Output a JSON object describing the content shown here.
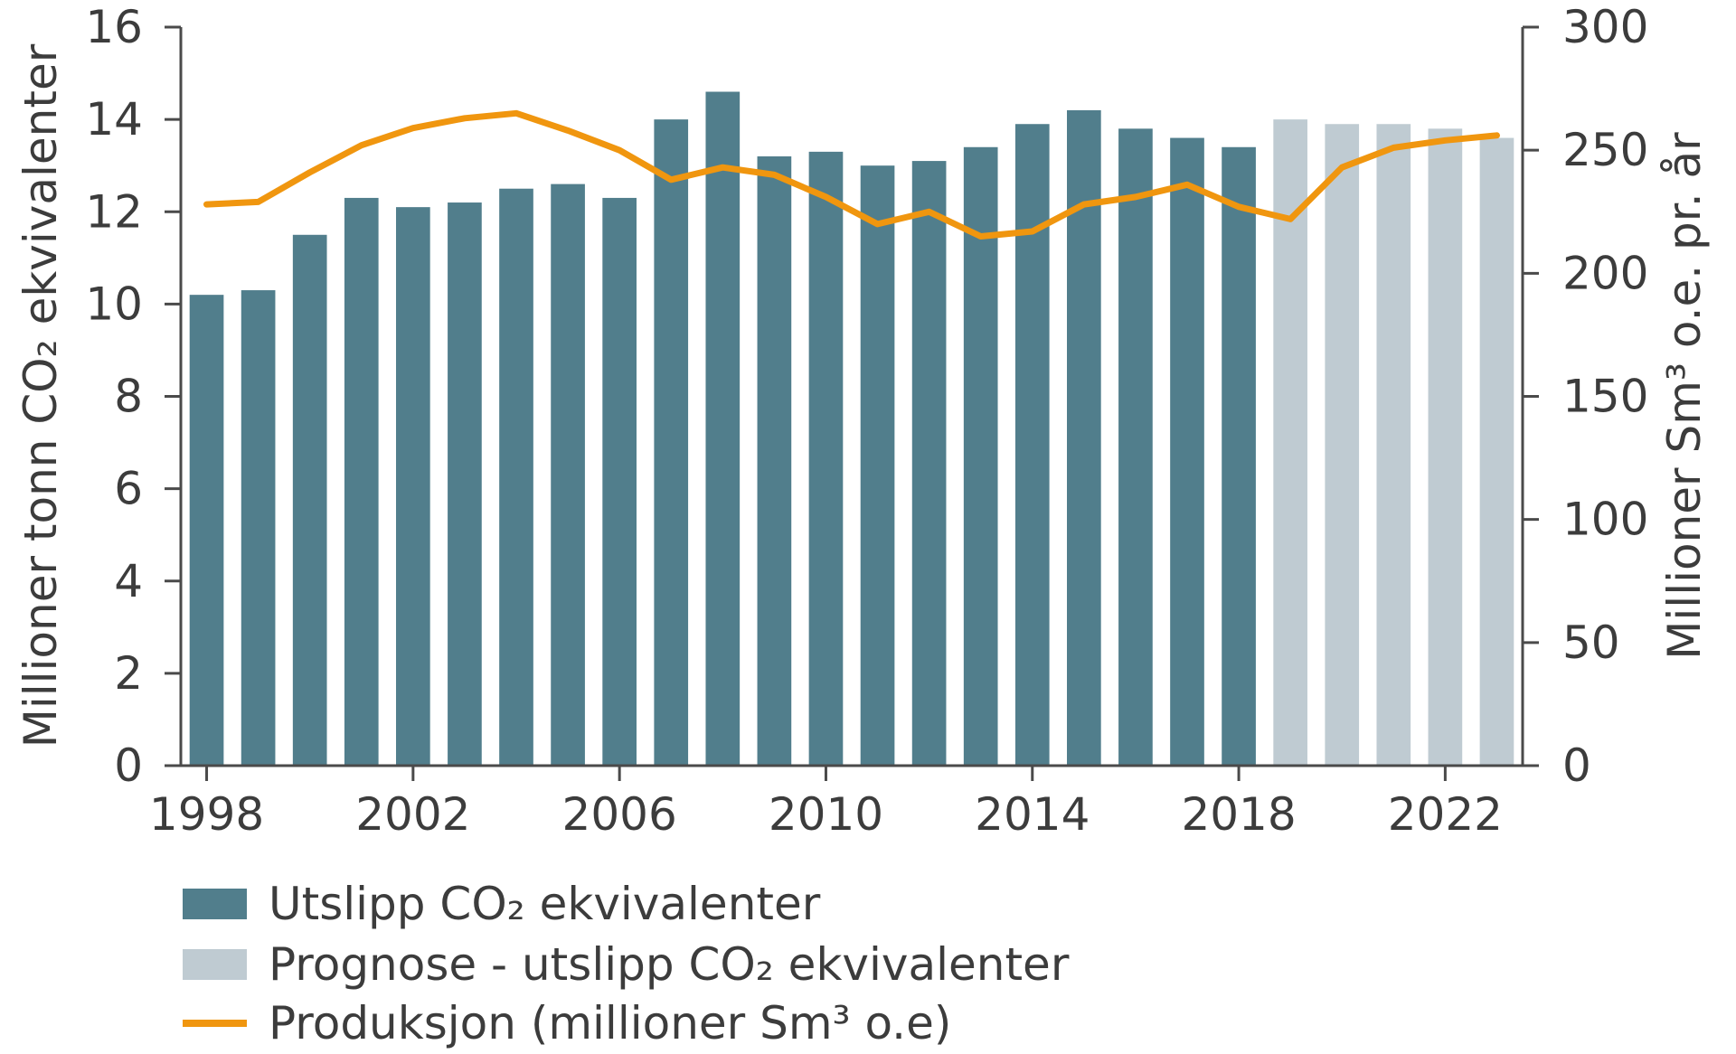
{
  "chart_data": {
    "type": "bar",
    "years": [
      1998,
      1999,
      2000,
      2001,
      2002,
      2003,
      2004,
      2005,
      2006,
      2007,
      2008,
      2009,
      2010,
      2011,
      2012,
      2013,
      2014,
      2015,
      2016,
      2017,
      2018,
      2019,
      2020,
      2021,
      2022,
      2023
    ],
    "x_ticks": [
      "1998",
      "2002",
      "2006",
      "2010",
      "2014",
      "2018",
      "2022"
    ],
    "series": [
      {
        "name": "Utslipp CO₂ ekvivalenter",
        "axis": "left",
        "kind": "bar",
        "color": "#517e8c",
        "values": [
          10.2,
          10.3,
          11.5,
          12.3,
          12.1,
          12.2,
          12.5,
          12.6,
          12.3,
          14.0,
          14.6,
          13.2,
          13.3,
          13.0,
          13.1,
          13.4,
          13.9,
          14.2,
          13.8,
          13.6,
          13.4,
          null,
          null,
          null,
          null,
          null
        ]
      },
      {
        "name": "Prognose - utslipp CO₂ ekvivalenter",
        "axis": "left",
        "kind": "bar",
        "color": "#bfcbd2",
        "values": [
          null,
          null,
          null,
          null,
          null,
          null,
          null,
          null,
          null,
          null,
          null,
          null,
          null,
          null,
          null,
          null,
          null,
          null,
          null,
          null,
          null,
          14.0,
          13.9,
          13.9,
          13.8,
          13.6
        ]
      },
      {
        "name": "Produksjon (millioner Sm³ o.e)",
        "axis": "right",
        "kind": "line",
        "color": "#f0960f",
        "values": [
          228,
          229,
          241,
          252,
          259,
          263,
          265,
          258,
          250,
          238,
          243,
          240,
          231,
          220,
          225,
          215,
          217,
          228,
          231,
          236,
          227,
          222,
          243,
          251,
          254,
          256
        ]
      }
    ],
    "y_left": {
      "label": "Millioner tonn CO₂ ekvivalenter",
      "min": 0,
      "max": 16,
      "ticks": [
        "0",
        "2",
        "4",
        "6",
        "8",
        "10",
        "12",
        "14",
        "16"
      ]
    },
    "y_right": {
      "label": "Millioner Sm³ o.e. pr. år",
      "min": 0,
      "max": 300,
      "ticks": [
        "0",
        "50",
        "100",
        "150",
        "200",
        "250",
        "300"
      ]
    },
    "legend": {
      "placement": "bottom",
      "items": [
        {
          "label": "Utslipp CO₂ ekvivalenter",
          "type": "bar",
          "color": "#517e8c"
        },
        {
          "label": "Prognose - utslipp CO₂ ekvivalenter",
          "type": "bar",
          "color": "#bfcbd2"
        },
        {
          "label": "Produksjon (millioner Sm³ o.e)",
          "type": "line",
          "color": "#f0960f"
        }
      ]
    },
    "grid": false
  }
}
